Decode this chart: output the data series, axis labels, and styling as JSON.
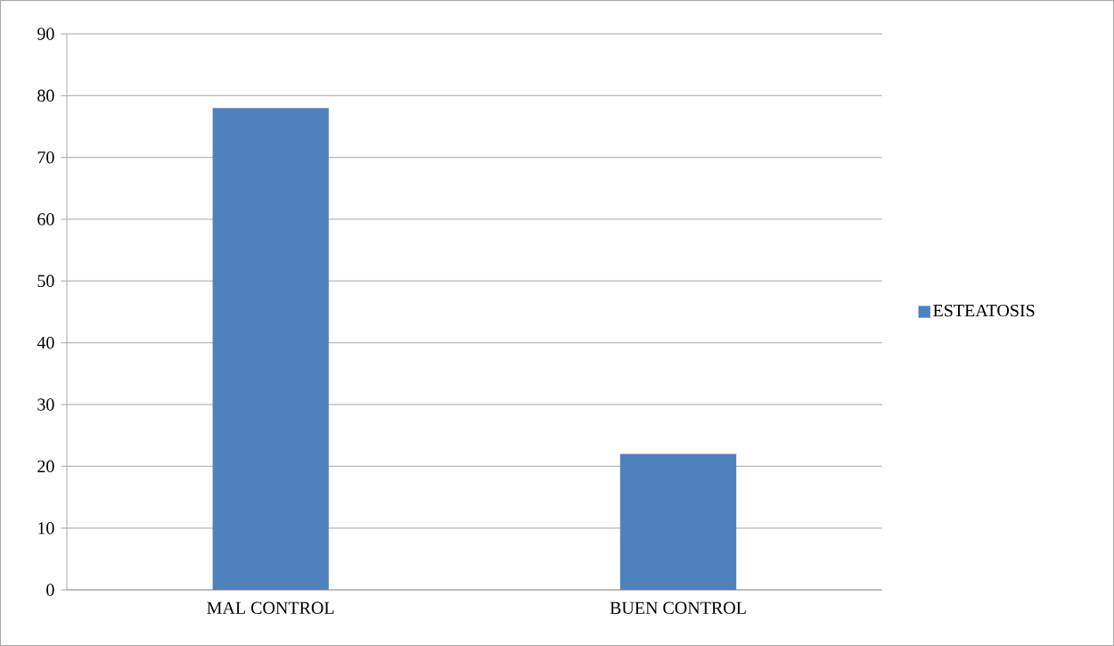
{
  "chart_data": {
    "type": "bar",
    "categories": [
      "MAL CONTROL",
      "BUEN  CONTROL"
    ],
    "series": [
      {
        "name": "ESTEATOSIS",
        "color": "#4f81bd",
        "values": [
          78,
          22
        ]
      }
    ],
    "ylim": [
      0,
      90
    ],
    "yticks": [
      0,
      10,
      20,
      30,
      40,
      50,
      60,
      70,
      80,
      90
    ],
    "grid": "y",
    "legend": "right"
  }
}
